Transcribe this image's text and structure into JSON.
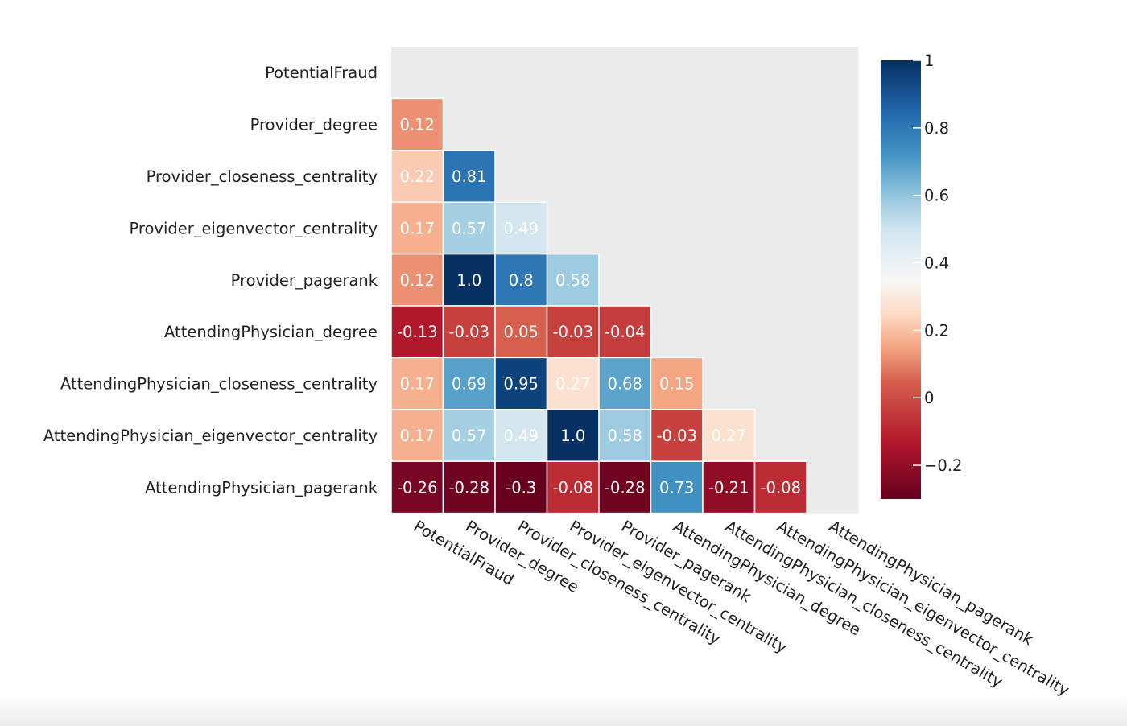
{
  "chart_data": {
    "type": "heatmap",
    "title": "",
    "xlabel": "",
    "ylabel": "",
    "variables": [
      "PotentialFraud",
      "Provider_degree",
      "Provider_closeness_centrality",
      "Provider_eigenvector_centrality",
      "Provider_pagerank",
      "AttendingPhysician_degree",
      "AttendingPhysician_closeness_centrality",
      "AttendingPhysician_eigenvector_centrality",
      "AttendingPhysician_pagerank"
    ],
    "cells": [
      [
        null
      ],
      [
        0.12
      ],
      [
        0.22,
        0.81
      ],
      [
        0.17,
        0.57,
        0.49
      ],
      [
        0.12,
        1.0,
        0.8,
        0.58
      ],
      [
        -0.13,
        -0.03,
        0.05,
        -0.03,
        -0.04
      ],
      [
        0.17,
        0.69,
        0.95,
        0.27,
        0.68,
        0.15
      ],
      [
        0.17,
        0.57,
        0.49,
        1.0,
        0.58,
        -0.03,
        0.27
      ],
      [
        -0.26,
        -0.28,
        -0.3,
        -0.08,
        -0.28,
        0.73,
        -0.21,
        -0.08
      ]
    ],
    "cell_labels": [
      [
        ""
      ],
      [
        "0.12"
      ],
      [
        "0.22",
        "0.81"
      ],
      [
        "0.17",
        "0.57",
        "0.49"
      ],
      [
        "0.12",
        "1.0",
        "0.8",
        "0.58"
      ],
      [
        "-0.13",
        "-0.03",
        "0.05",
        "-0.03",
        "-0.04"
      ],
      [
        "0.17",
        "0.69",
        "0.95",
        "0.27",
        "0.68",
        "0.15"
      ],
      [
        "0.17",
        "0.57",
        "0.49",
        "1.0",
        "0.58",
        "-0.03",
        "0.27"
      ],
      [
        "-0.26",
        "-0.28",
        "-0.3",
        "-0.08",
        "-0.28",
        "0.73",
        "-0.21",
        "-0.08"
      ]
    ],
    "colorscale": {
      "min": -0.3,
      "max": 1.0,
      "stops": [
        [
          -0.3,
          "#67001f"
        ],
        [
          -0.13,
          "#b2182b"
        ],
        [
          0.05,
          "#d6604d"
        ],
        [
          0.15,
          "#f4a582"
        ],
        [
          0.25,
          "#fddbc7"
        ],
        [
          0.35,
          "#f7f7f7"
        ],
        [
          0.5,
          "#d1e5f0"
        ],
        [
          0.6,
          "#92c5de"
        ],
        [
          0.72,
          "#4393c3"
        ],
        [
          0.85,
          "#2166ac"
        ],
        [
          1.0,
          "#053061"
        ]
      ],
      "ticks": [
        1,
        0.8,
        0.6,
        0.4,
        0.2,
        0,
        -0.2
      ],
      "tick_labels": [
        "1",
        "0.8",
        "0.6",
        "0.4",
        "0.2",
        "0",
        "−0.2"
      ]
    },
    "plot_background": "#ebebeb",
    "cell_border_color": "#ffffff",
    "label_color": "#ffffff"
  }
}
